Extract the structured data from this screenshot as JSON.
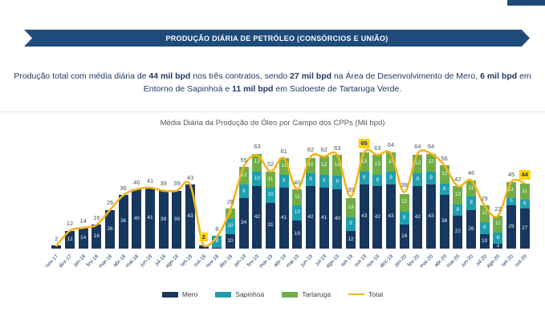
{
  "banner": {
    "title": "PRODUÇÃO DIÁRIA DE PETRÓLEO (CONSÓRCIOS E UNIÃO)"
  },
  "intro": {
    "runs": [
      {
        "text": "Produção total com média diária de ",
        "bold": false
      },
      {
        "text": "44 mil bpd",
        "bold": true
      },
      {
        "text": " nos três contratos, sendo ",
        "bold": false
      },
      {
        "text": "27 mil bpd",
        "bold": true
      },
      {
        "text": " na Área de Desenvolvimento de Mero, ",
        "bold": false
      },
      {
        "text": "6 mil bpd",
        "bold": true
      },
      {
        "text": " em Entorno de Sapinhoá e ",
        "bold": false
      },
      {
        "text": "11 mil bpd",
        "bold": true
      },
      {
        "text": " em Sudoeste de Tartaruga Verde.",
        "bold": false
      }
    ]
  },
  "chart_data": {
    "type": "bar",
    "stacked": true,
    "title": "Média Diária da Produção de Óleo por Campo dos CPPs (Mil bpd)",
    "categories": [
      "nov-17",
      "dez-17",
      "jan-18",
      "fev-18",
      "mar-18",
      "abr-18",
      "mai-18",
      "jun-18",
      "jul-18",
      "ago-18",
      "set-18",
      "out-18",
      "nov-18",
      "dez-18",
      "jan-19",
      "fev-19",
      "mar-19",
      "abr-19",
      "mai-19",
      "jun-19",
      "jul-19",
      "ago-19",
      "set-19",
      "out-19",
      "nov-19",
      "dez-19",
      "jan-20",
      "fev-20",
      "mar-20",
      "abr-20",
      "mai-20",
      "jun-20",
      "jul-20",
      "ago-20",
      "set-20",
      "out-20"
    ],
    "series": [
      {
        "name": "Mero",
        "color": "#17375E",
        "values": [
          2,
          12,
          14,
          16,
          26,
          36,
          40,
          41,
          39,
          39,
          43,
          2,
          0.5,
          10,
          34,
          42,
          31,
          41,
          19,
          42,
          41,
          40,
          12,
          43,
          42,
          43,
          16,
          42,
          43,
          36,
          22,
          26,
          10,
          3,
          29,
          27
        ]
      },
      {
        "name": "Sapinhoá",
        "color": "#1F9EAF",
        "values": [
          0,
          0,
          0,
          0,
          0,
          0,
          0,
          0,
          0,
          0,
          0,
          0,
          8,
          10,
          9,
          10,
          10,
          9,
          10,
          9,
          9,
          9,
          9,
          9,
          8,
          9,
          9,
          9,
          9,
          8,
          8,
          9,
          8,
          8,
          5,
          6
        ]
      },
      {
        "name": "Tartaruga",
        "color": "#70AD47",
        "values": [
          0,
          0,
          0,
          0,
          0,
          0,
          0,
          0,
          0,
          0,
          0,
          0,
          0,
          7,
          12,
          12,
          11,
          11,
          11,
          10,
          12,
          14,
          13,
          13,
          13,
          13,
          12,
          12,
          12,
          12,
          12,
          11,
          11,
          11,
          11,
          11
        ]
      }
    ],
    "line_series": {
      "name": "Total",
      "color": "#F4B41C",
      "values": [
        2,
        12,
        14,
        16,
        26,
        36,
        40,
        41,
        39,
        39,
        43,
        2,
        8,
        26,
        55,
        63,
        52,
        61,
        40,
        62,
        62,
        63,
        35,
        65,
        63,
        64,
        38,
        64,
        64,
        56,
        42,
        46,
        29,
        22,
        45,
        44
      ]
    },
    "highlighted_categories": [
      "out-18",
      "out-19",
      "out-20"
    ],
    "highlight_color": "#FFD500",
    "ylim": [
      0,
      70
    ],
    "legend_position": "bottom",
    "grid": false
  }
}
